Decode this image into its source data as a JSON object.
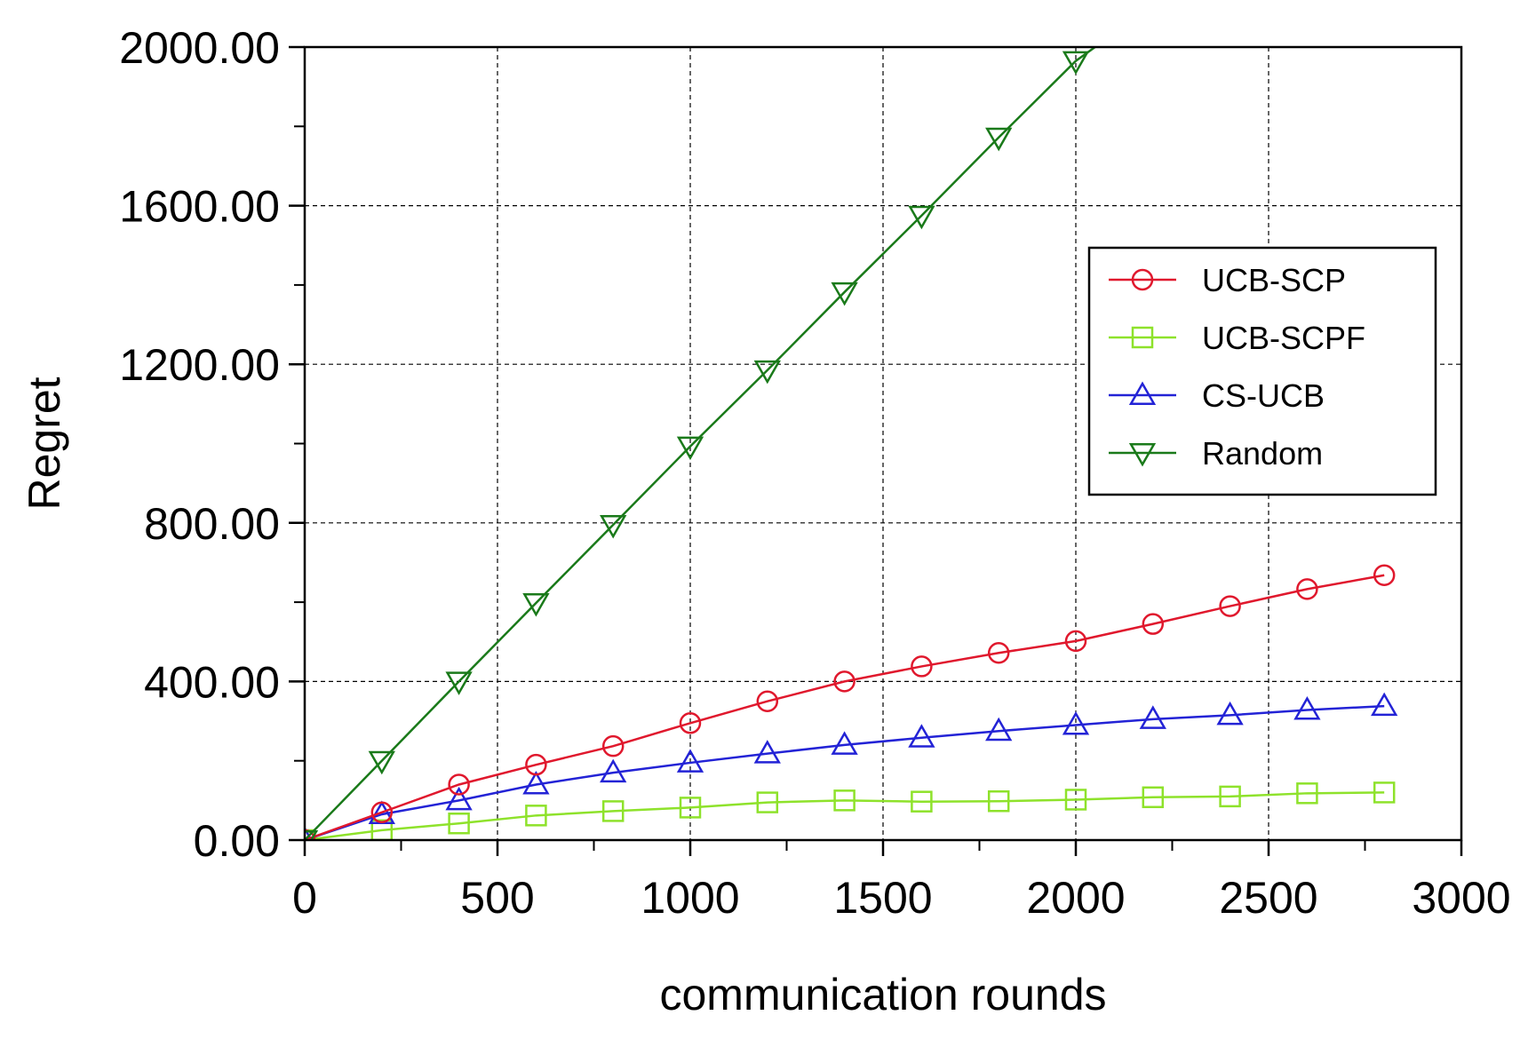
{
  "chart_data": {
    "type": "line",
    "title": "",
    "xlabel": "communication rounds",
    "ylabel": "Regret",
    "xlim": [
      0,
      3000
    ],
    "ylim": [
      0,
      2000
    ],
    "x_ticks": [
      0,
      500,
      1000,
      1500,
      2000,
      2500,
      3000
    ],
    "x_tick_labels": [
      "0",
      "500",
      "1000",
      "1500",
      "2000",
      "2500",
      "3000"
    ],
    "y_ticks": [
      0,
      400,
      800,
      1200,
      1600,
      2000
    ],
    "y_tick_labels": [
      "0.00",
      "400.00",
      "800.00",
      "1200.00",
      "1600.00",
      "2000.00"
    ],
    "grid": true,
    "legend_position": "right",
    "series": [
      {
        "name": "UCB-SCP",
        "color": "#e0182d",
        "marker": "circle",
        "x": [
          0,
          200,
          400,
          600,
          800,
          1000,
          1200,
          1400,
          1600,
          1800,
          2000,
          2200,
          2400,
          2600,
          2800
        ],
        "y": [
          0,
          70,
          140,
          190,
          237,
          295,
          350,
          400,
          438,
          472,
          502,
          545,
          590,
          633,
          668
        ]
      },
      {
        "name": "UCB-SCPF",
        "color": "#8ee22b",
        "marker": "square",
        "x": [
          0,
          200,
          400,
          600,
          800,
          1000,
          1200,
          1400,
          1600,
          1800,
          2000,
          2200,
          2400,
          2600,
          2800
        ],
        "y": [
          0,
          25,
          42,
          62,
          73,
          82,
          95,
          100,
          97,
          98,
          102,
          108,
          110,
          118,
          120
        ]
      },
      {
        "name": "CS-UCB",
        "color": "#2323d6",
        "marker": "triangle-up",
        "x": [
          0,
          200,
          400,
          600,
          800,
          1000,
          1200,
          1400,
          1600,
          1800,
          2000,
          2200,
          2400,
          2600,
          2800
        ],
        "y": [
          0,
          65,
          100,
          140,
          170,
          195,
          218,
          240,
          258,
          275,
          290,
          305,
          315,
          328,
          338
        ]
      },
      {
        "name": "Random",
        "color": "#1a7a1a",
        "marker": "triangle-down",
        "x": [
          0,
          200,
          400,
          600,
          800,
          1000,
          1200,
          1400,
          1600,
          1800,
          2000,
          2050
        ],
        "y": [
          0,
          200,
          400,
          598,
          795,
          993,
          1185,
          1382,
          1575,
          1772,
          1965,
          2000
        ],
        "marker_count": 11
      }
    ]
  }
}
